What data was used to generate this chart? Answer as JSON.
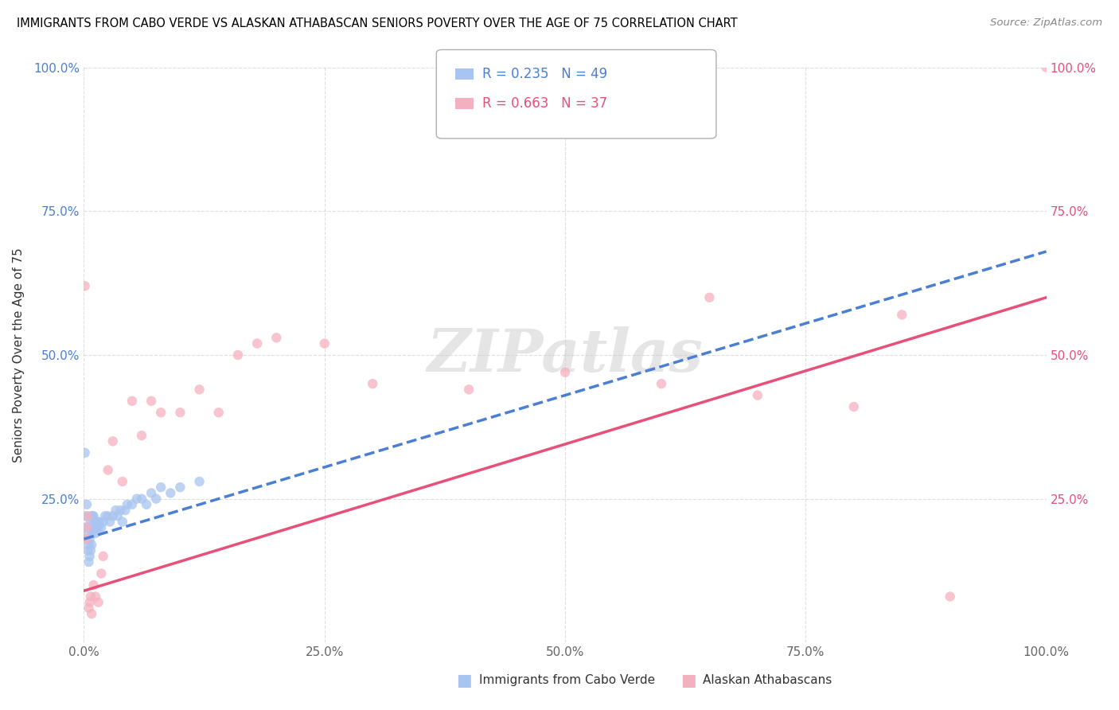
{
  "title": "IMMIGRANTS FROM CABO VERDE VS ALASKAN ATHABASCAN SENIORS POVERTY OVER THE AGE OF 75 CORRELATION CHART",
  "source": "Source: ZipAtlas.com",
  "ylabel": "Seniors Poverty Over the Age of 75",
  "xlim": [
    0,
    1.0
  ],
  "ylim": [
    0,
    1.0
  ],
  "xticks": [
    0.0,
    0.25,
    0.5,
    0.75,
    1.0
  ],
  "xtick_labels": [
    "0.0%",
    "25.0%",
    "50.0%",
    "75.0%",
    "100.0%"
  ],
  "ytick_labels_left": [
    "",
    "25.0%",
    "50.0%",
    "75.0%",
    "100.0%"
  ],
  "ytick_labels_right": [
    "",
    "25.0%",
    "50.0%",
    "75.0%",
    "100.0%"
  ],
  "cabo_verde_R": 0.235,
  "cabo_verde_N": 49,
  "athabascan_R": 0.663,
  "athabascan_N": 37,
  "cabo_verde_color": "#a8c4f0",
  "athabascan_color": "#f5b0c0",
  "cabo_verde_line_color": "#4a7fd4",
  "athabascan_line_color": "#e8507a",
  "watermark": "ZIPatlas",
  "cabo_verde_x": [
    0.001,
    0.002,
    0.002,
    0.003,
    0.003,
    0.003,
    0.004,
    0.004,
    0.005,
    0.005,
    0.005,
    0.006,
    0.006,
    0.007,
    0.007,
    0.008,
    0.008,
    0.009,
    0.009,
    0.01,
    0.01,
    0.011,
    0.012,
    0.013,
    0.014,
    0.015,
    0.016,
    0.018,
    0.02,
    0.022,
    0.025,
    0.027,
    0.03,
    0.033,
    0.035,
    0.038,
    0.04,
    0.043,
    0.045,
    0.05,
    0.055,
    0.06,
    0.065,
    0.07,
    0.075,
    0.08,
    0.09,
    0.1,
    0.12
  ],
  "cabo_verde_y": [
    0.33,
    0.2,
    0.22,
    0.18,
    0.2,
    0.24,
    0.16,
    0.19,
    0.14,
    0.17,
    0.2,
    0.15,
    0.18,
    0.16,
    0.21,
    0.17,
    0.22,
    0.19,
    0.22,
    0.2,
    0.22,
    0.21,
    0.19,
    0.2,
    0.21,
    0.2,
    0.21,
    0.2,
    0.21,
    0.22,
    0.22,
    0.21,
    0.22,
    0.23,
    0.22,
    0.23,
    0.21,
    0.23,
    0.24,
    0.24,
    0.25,
    0.25,
    0.24,
    0.26,
    0.25,
    0.27,
    0.26,
    0.27,
    0.28
  ],
  "athabascan_x": [
    0.001,
    0.002,
    0.003,
    0.004,
    0.005,
    0.006,
    0.007,
    0.008,
    0.01,
    0.012,
    0.015,
    0.018,
    0.02,
    0.025,
    0.03,
    0.04,
    0.05,
    0.06,
    0.07,
    0.08,
    0.1,
    0.12,
    0.14,
    0.16,
    0.18,
    0.2,
    0.25,
    0.3,
    0.4,
    0.5,
    0.6,
    0.65,
    0.7,
    0.8,
    0.85,
    0.9,
    1.0
  ],
  "athabascan_y": [
    0.62,
    0.18,
    0.2,
    0.22,
    0.06,
    0.07,
    0.08,
    0.05,
    0.1,
    0.08,
    0.07,
    0.12,
    0.15,
    0.3,
    0.35,
    0.28,
    0.42,
    0.36,
    0.42,
    0.4,
    0.4,
    0.44,
    0.4,
    0.5,
    0.52,
    0.53,
    0.52,
    0.45,
    0.44,
    0.47,
    0.45,
    0.6,
    0.43,
    0.41,
    0.57,
    0.08,
    1.0
  ],
  "cabo_verde_line_x0": 0.0,
  "cabo_verde_line_y0": 0.18,
  "cabo_verde_line_x1": 1.0,
  "cabo_verde_line_y1": 0.68,
  "athabascan_line_x0": 0.0,
  "athabascan_line_y0": 0.09,
  "athabascan_line_x1": 1.0,
  "athabascan_line_y1": 0.6
}
